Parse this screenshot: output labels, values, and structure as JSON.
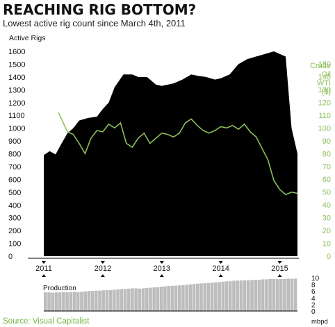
{
  "header": {
    "title": "REACHING RIG BOTTOM?",
    "subtitle": "Lowest active rig count since March 4th, 2011"
  },
  "source": "Source: Visual Capitalist",
  "colors": {
    "rigs_fill": "#000000",
    "oil_line": "#8cbf5a",
    "production_bars": "#bdbdbd",
    "source_text": "#7ab648"
  },
  "chart_data": [
    {
      "type": "area",
      "ylabel": "Active Rigs",
      "ylim": [
        0,
        1600
      ],
      "yticks": [
        "0",
        "100",
        "200",
        "300",
        "400",
        "500",
        "600",
        "700",
        "800",
        "900",
        "1000",
        "1100",
        "1200",
        "1300",
        "1400",
        "1500",
        "1600"
      ],
      "x_tick_labels": [
        "2011",
        "2012",
        "2013",
        "2014",
        "2015"
      ],
      "x_tick_values": [
        2011.0,
        2012.0,
        2013.0,
        2014.0,
        2015.0
      ],
      "xlim": [
        2011.0,
        2015.3
      ],
      "series": [
        {
          "x": [
            2011.0,
            2011.1,
            2011.2,
            2011.3,
            2011.4,
            2011.5,
            2011.6,
            2011.75,
            2011.9,
            2012.0,
            2012.1,
            2012.2,
            2012.35,
            2012.5,
            2012.6,
            2012.75,
            2012.9,
            2013.0,
            2013.2,
            2013.35,
            2013.5,
            2013.6,
            2013.75,
            2013.9,
            2014.0,
            2014.15,
            2014.3,
            2014.45,
            2014.6,
            2014.75,
            2014.9,
            2015.0,
            2015.1,
            2015.2,
            2015.3
          ],
          "values": [
            790,
            820,
            795,
            880,
            960,
            1000,
            1060,
            1080,
            1090,
            1150,
            1200,
            1320,
            1420,
            1420,
            1400,
            1400,
            1340,
            1330,
            1350,
            1380,
            1420,
            1410,
            1400,
            1380,
            1390,
            1420,
            1500,
            1540,
            1560,
            1580,
            1600,
            1580,
            1560,
            1000,
            800
          ]
        }
      ]
    },
    {
      "type": "line",
      "ylabel": "Crude Oil WTI ($)",
      "ylim": [
        0,
        160
      ],
      "yticks": [
        "0",
        "10",
        "20",
        "30",
        "40",
        "50",
        "60",
        "70",
        "80",
        "90",
        "100",
        "110",
        "120",
        "130",
        "140",
        "150"
      ],
      "series": [
        {
          "x": [
            2011.25,
            2011.4,
            2011.5,
            2011.6,
            2011.7,
            2011.8,
            2011.9,
            2012.0,
            2012.1,
            2012.2,
            2012.3,
            2012.4,
            2012.5,
            2012.6,
            2012.7,
            2012.8,
            2012.9,
            2013.0,
            2013.1,
            2013.2,
            2013.3,
            2013.4,
            2013.5,
            2013.6,
            2013.7,
            2013.8,
            2013.9,
            2014.0,
            2014.1,
            2014.2,
            2014.3,
            2014.4,
            2014.5,
            2014.6,
            2014.7,
            2014.8,
            2014.9,
            2015.0,
            2015.1,
            2015.2,
            2015.3
          ],
          "values": [
            112,
            97,
            95,
            88,
            80,
            92,
            98,
            97,
            103,
            100,
            104,
            88,
            85,
            92,
            96,
            88,
            92,
            96,
            95,
            93,
            96,
            104,
            107,
            102,
            98,
            96,
            98,
            101,
            100,
            102,
            99,
            103,
            97,
            93,
            84,
            75,
            59,
            52,
            48,
            50,
            49
          ]
        }
      ]
    },
    {
      "type": "bar",
      "ylabel": "Production",
      "unit": "mbpd",
      "ylim": [
        0,
        10
      ],
      "yticks": [
        "0",
        "2",
        "4",
        "6",
        "8",
        "10"
      ],
      "x_start": 2011.0,
      "x_end": 2015.3,
      "values": [
        5.6,
        5.6,
        5.5,
        5.6,
        5.6,
        5.7,
        5.6,
        5.7,
        5.8,
        5.7,
        5.8,
        5.9,
        6.0,
        6.0,
        6.1,
        6.1,
        6.2,
        6.3,
        6.3,
        6.4,
        6.5,
        6.6,
        6.6,
        6.7,
        6.8,
        6.8,
        6.7,
        6.8,
        6.9,
        7.0,
        7.1,
        7.2,
        7.3,
        7.4,
        7.5,
        7.5,
        7.6,
        7.7,
        7.8,
        7.9,
        8.0,
        8.1,
        8.2,
        8.3,
        8.4,
        8.4,
        8.5,
        8.6,
        8.7,
        8.8,
        8.9,
        9.0,
        9.1,
        9.1,
        9.2,
        9.2,
        9.3,
        9.3,
        9.4,
        9.4,
        9.5,
        9.5,
        9.6,
        9.6,
        9.6,
        9.6,
        9.6,
        9.7,
        9.7,
        9.7
      ]
    }
  ]
}
